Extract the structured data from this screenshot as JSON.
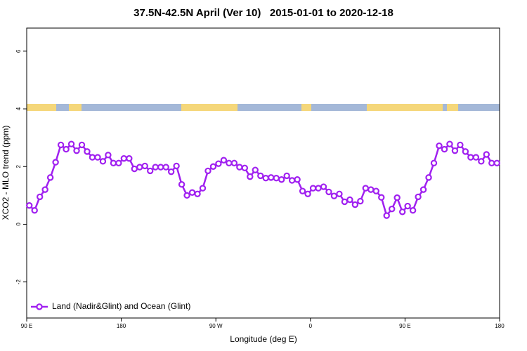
{
  "chart_data": {
    "type": "line",
    "title": "37.5N-42.5N April (Ver 10)   2015-01-01 to 2020-12-18",
    "xlabel": "Longitude (deg E)",
    "ylabel": "XCO2 - MLO trend (ppm)",
    "x": [
      92.5,
      97.5,
      102.5,
      107.5,
      112.5,
      117.5,
      122.5,
      127.5,
      132.5,
      137.5,
      142.5,
      147.5,
      152.5,
      157.5,
      162.5,
      167.5,
      172.5,
      177.5,
      182.5,
      187.5,
      192.5,
      197.5,
      202.5,
      207.5,
      212.5,
      217.5,
      222.5,
      227.5,
      232.5,
      237.5,
      242.5,
      247.5,
      252.5,
      257.5,
      262.5,
      267.5,
      272.5,
      277.5,
      282.5,
      287.5,
      292.5,
      297.5,
      302.5,
      307.5,
      312.5,
      317.5,
      322.5,
      327.5,
      332.5,
      337.5,
      342.5,
      347.5,
      352.5,
      357.5,
      362.5,
      367.5,
      372.5,
      377.5,
      382.5,
      387.5,
      392.5,
      397.5,
      402.5,
      407.5,
      412.5,
      417.5,
      422.5,
      427.5,
      432.5,
      437.5,
      442.5,
      447.5,
      452.5,
      457.5,
      462.5,
      467.5,
      472.5,
      477.5,
      482.5,
      487.5,
      492.5,
      497.5,
      502.5,
      507.5,
      512.5,
      517.5,
      522.5,
      527.5,
      532.5,
      537.5
    ],
    "series": [
      {
        "name": "Land (Nadir&Glint) and Ocean (Glint)",
        "color": "#a020f0",
        "values": [
          0.65,
          0.48,
          0.95,
          1.2,
          1.62,
          2.15,
          2.75,
          2.6,
          2.78,
          2.55,
          2.75,
          2.52,
          2.32,
          2.32,
          2.18,
          2.4,
          2.12,
          2.12,
          2.28,
          2.28,
          1.92,
          1.98,
          2.02,
          1.85,
          1.98,
          1.98,
          1.98,
          1.82,
          2.02,
          1.38,
          1.0,
          1.1,
          1.05,
          1.25,
          1.85,
          2.0,
          2.1,
          2.22,
          2.12,
          2.12,
          1.98,
          1.95,
          1.65,
          1.88,
          1.68,
          1.6,
          1.62,
          1.6,
          1.55,
          1.68,
          1.52,
          1.55,
          1.15,
          1.05,
          1.25,
          1.25,
          1.3,
          1.12,
          0.98,
          1.05,
          0.78,
          0.85,
          0.68,
          0.8,
          1.25,
          1.2,
          1.15,
          0.93,
          0.3,
          0.53,
          0.92,
          0.43,
          0.63,
          0.48,
          0.95,
          1.2,
          1.62,
          2.12,
          2.72,
          2.6,
          2.78,
          2.55,
          2.75,
          2.52,
          2.32,
          2.32,
          2.18,
          2.42,
          2.12,
          2.12
        ]
      }
    ],
    "xlim": [
      90,
      540
    ],
    "xticks": [
      {
        "value": 90,
        "label": "90 E"
      },
      180,
      {
        "value": 270,
        "label": "90 W"
      },
      {
        "value": 360,
        "label": "0"
      },
      {
        "value": 450,
        "label": "90 E"
      },
      {
        "value": 540,
        "label": "180"
      }
    ],
    "ylim": [
      -3.25,
      6.8
    ],
    "yticks": [
      -2,
      0,
      2,
      4,
      6
    ],
    "legend": "bottom-left"
  }
}
